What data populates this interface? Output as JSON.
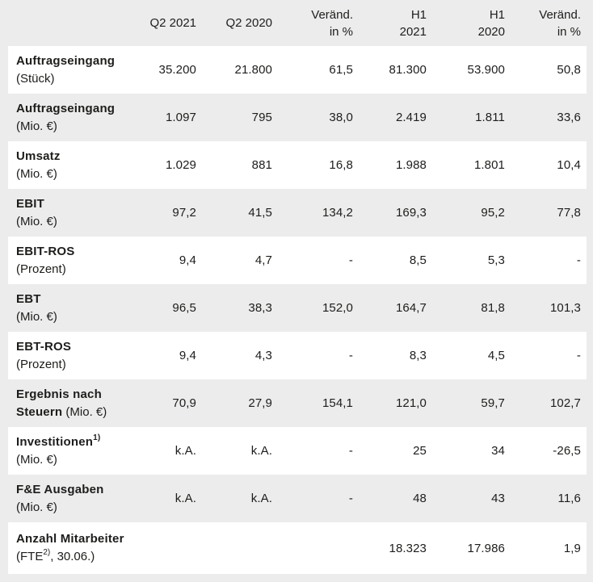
{
  "header": {
    "columns": [
      {
        "line1": "Q2 2021",
        "line2": ""
      },
      {
        "line1": "Q2 2020",
        "line2": ""
      },
      {
        "line1": "Veränd.",
        "line2": "in %"
      },
      {
        "line1": "H1",
        "line2": "2021"
      },
      {
        "line1": "H1",
        "line2": "2020"
      },
      {
        "line1": "Veränd.",
        "line2": "in %"
      }
    ]
  },
  "rows": [
    {
      "id": "auftragseingang-stueck",
      "l1": "Auftragseingang",
      "l1sup": "",
      "l2bold": "",
      "l2": "(Stück)",
      "l2sup": "",
      "l2post": "",
      "values": [
        "35.200",
        "21.800",
        "61,5",
        "81.300",
        "53.900",
        "50,8"
      ]
    },
    {
      "id": "auftragseingang-mio",
      "l1": "Auftragseingang",
      "l1sup": "",
      "l2bold": "",
      "l2": "(Mio. €)",
      "l2sup": "",
      "l2post": "",
      "values": [
        "1.097",
        "795",
        "38,0",
        "2.419",
        "1.811",
        "33,6"
      ]
    },
    {
      "id": "umsatz",
      "l1": "Umsatz",
      "l1sup": "",
      "l2bold": "",
      "l2": "(Mio. €)",
      "l2sup": "",
      "l2post": "",
      "values": [
        "1.029",
        "881",
        "16,8",
        "1.988",
        "1.801",
        "10,4"
      ]
    },
    {
      "id": "ebit",
      "l1": "EBIT",
      "l1sup": "",
      "l2bold": "",
      "l2": "(Mio. €)",
      "l2sup": "",
      "l2post": "",
      "values": [
        "97,2",
        "41,5",
        "134,2",
        "169,3",
        "95,2",
        "77,8"
      ]
    },
    {
      "id": "ebit-ros",
      "l1": "EBIT-ROS",
      "l1sup": "",
      "l2bold": "",
      "l2": "(Prozent)",
      "l2sup": "",
      "l2post": "",
      "values": [
        "9,4",
        "4,7",
        "-",
        "8,5",
        "5,3",
        "-"
      ]
    },
    {
      "id": "ebt",
      "l1": "EBT",
      "l1sup": "",
      "l2bold": "",
      "l2": "(Mio. €)",
      "l2sup": "",
      "l2post": "",
      "values": [
        "96,5",
        "38,3",
        "152,0",
        "164,7",
        "81,8",
        "101,3"
      ]
    },
    {
      "id": "ebt-ros",
      "l1": "EBT-ROS",
      "l1sup": "",
      "l2bold": "",
      "l2": "(Prozent)",
      "l2sup": "",
      "l2post": "",
      "values": [
        "9,4",
        "4,3",
        "-",
        "8,3",
        "4,5",
        "-"
      ]
    },
    {
      "id": "ergebnis-nach-steuern",
      "l1": "Ergebnis nach",
      "l1sup": "",
      "l2bold": "Steuern",
      "l2": " (Mio. €)",
      "l2sup": "",
      "l2post": "",
      "values": [
        "70,9",
        "27,9",
        "154,1",
        "121,0",
        "59,7",
        "102,7"
      ]
    },
    {
      "id": "investitionen",
      "l1": "Investitionen",
      "l1sup": "1)",
      "l2bold": "",
      "l2": "(Mio. €)",
      "l2sup": "",
      "l2post": "",
      "values": [
        "k.A.",
        "k.A.",
        "-",
        "25",
        "34",
        "-26,5"
      ]
    },
    {
      "id": "fe-ausgaben",
      "l1": "F&E Ausgaben",
      "l1sup": "",
      "l2bold": "",
      "l2": "(Mio. €)",
      "l2sup": "",
      "l2post": "",
      "values": [
        "k.A.",
        "k.A.",
        "-",
        "48",
        "43",
        "11,6"
      ]
    },
    {
      "id": "anzahl-mitarbeiter",
      "l1": "Anzahl Mitarbeiter",
      "l1sup": "",
      "l2bold": "",
      "l2": "(FTE",
      "l2sup": "2)",
      "l2post": ", 30.06.)",
      "values": [
        "",
        "",
        "",
        "18.323",
        "17.986",
        "1,9"
      ]
    }
  ],
  "colors": {
    "page_background": "#ececec",
    "row_highlight": "#ffffff",
    "text": "#1d1d1b"
  }
}
